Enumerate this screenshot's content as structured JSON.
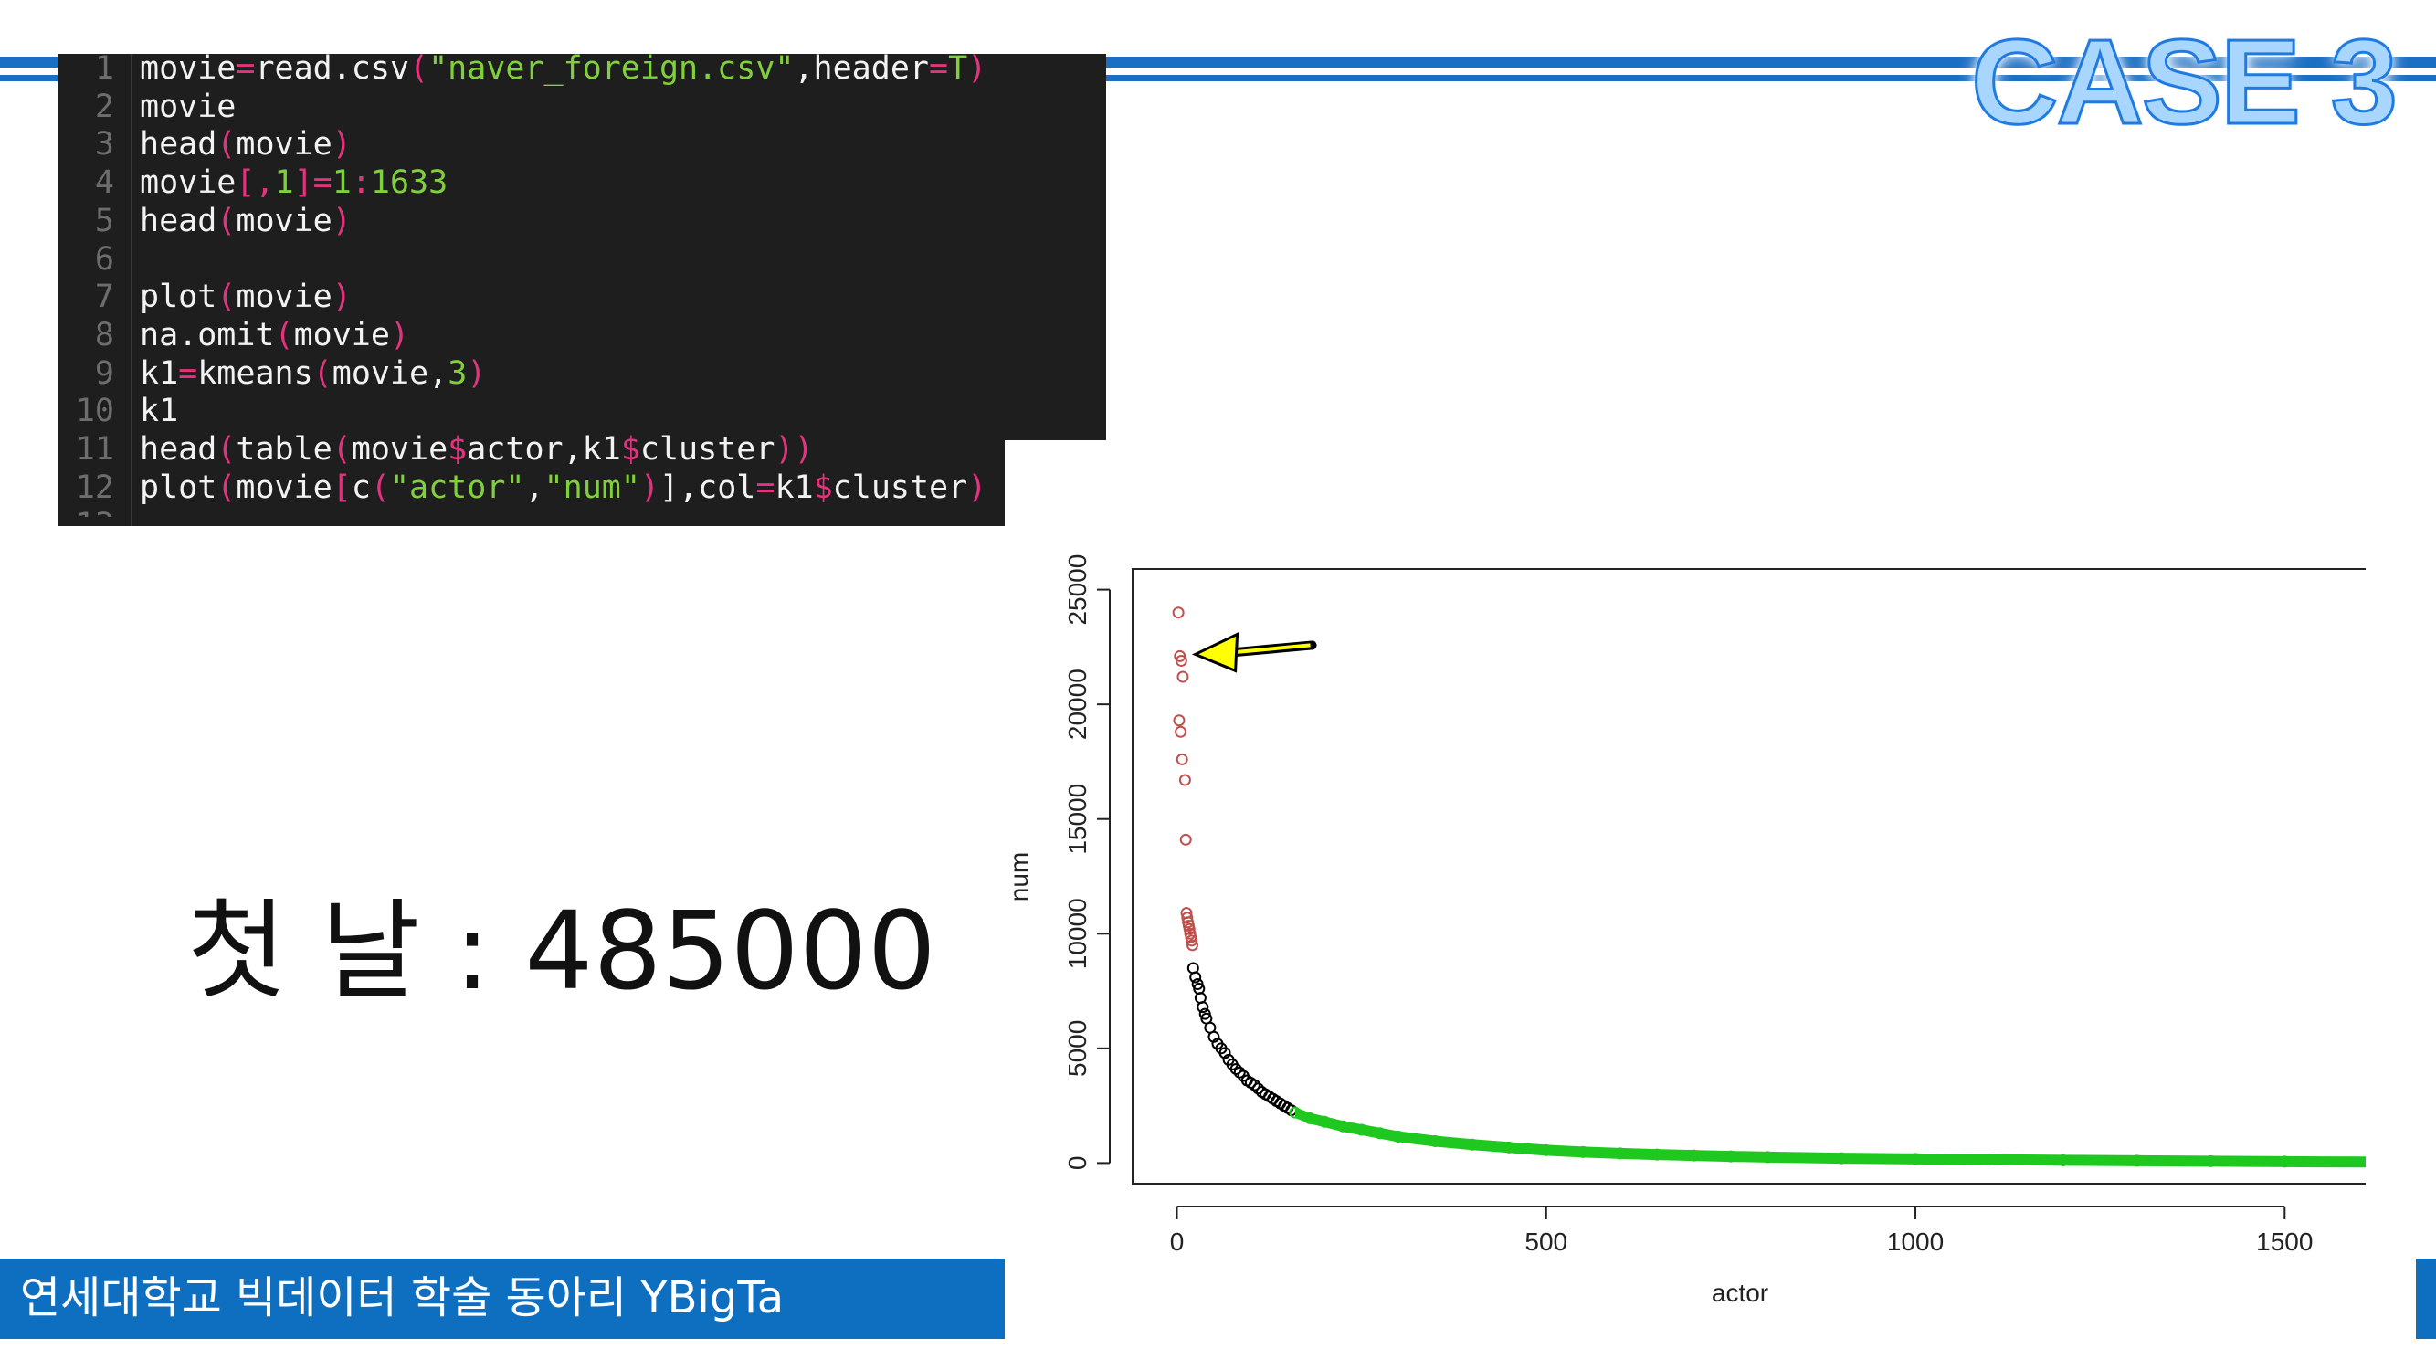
{
  "header": {
    "case_title": "CASE 3"
  },
  "code": {
    "lines": [
      {
        "n": "1",
        "segs": [
          [
            "tx",
            "movie"
          ],
          [
            "kw",
            "="
          ],
          [
            "tx",
            "read.csv"
          ],
          [
            "kw",
            "("
          ],
          [
            "st",
            "\"naver_foreign.csv\""
          ],
          [
            "tx",
            ",header"
          ],
          [
            "kw",
            "="
          ],
          [
            "st",
            "T"
          ],
          [
            "kw",
            ")"
          ]
        ]
      },
      {
        "n": "2",
        "segs": [
          [
            "tx",
            "movie"
          ]
        ]
      },
      {
        "n": "3",
        "segs": [
          [
            "tx",
            "head"
          ],
          [
            "kw",
            "("
          ],
          [
            "tx",
            "movie"
          ],
          [
            "kw",
            ")"
          ]
        ]
      },
      {
        "n": "4",
        "segs": [
          [
            "tx",
            "movie"
          ],
          [
            "kw",
            "[,"
          ],
          [
            "st",
            "1"
          ],
          [
            "kw",
            "]="
          ],
          [
            "st",
            "1"
          ],
          [
            "kw",
            ":"
          ],
          [
            "st",
            "1633"
          ]
        ]
      },
      {
        "n": "5",
        "segs": [
          [
            "tx",
            "head"
          ],
          [
            "kw",
            "("
          ],
          [
            "tx",
            "movie"
          ],
          [
            "kw",
            ")"
          ]
        ]
      },
      {
        "n": "6",
        "segs": []
      },
      {
        "n": "7",
        "segs": [
          [
            "tx",
            "plot"
          ],
          [
            "kw",
            "("
          ],
          [
            "tx",
            "movie"
          ],
          [
            "kw",
            ")"
          ]
        ]
      },
      {
        "n": "8",
        "segs": [
          [
            "tx",
            "na.omit"
          ],
          [
            "kw",
            "("
          ],
          [
            "tx",
            "movie"
          ],
          [
            "kw",
            ")"
          ]
        ]
      },
      {
        "n": "9",
        "segs": [
          [
            "tx",
            "k1"
          ],
          [
            "kw",
            "="
          ],
          [
            "tx",
            "kmeans"
          ],
          [
            "kw",
            "("
          ],
          [
            "tx",
            "movie,"
          ],
          [
            "st",
            "3"
          ],
          [
            "kw",
            ")"
          ]
        ]
      },
      {
        "n": "10",
        "segs": [
          [
            "tx",
            "k1"
          ]
        ]
      },
      {
        "n": "11",
        "segs": [
          [
            "tx",
            "head"
          ],
          [
            "kw",
            "("
          ],
          [
            "tx",
            "table"
          ],
          [
            "kw",
            "("
          ],
          [
            "tx",
            "movie"
          ],
          [
            "kw",
            "$"
          ],
          [
            "tx",
            "actor,k1"
          ],
          [
            "kw",
            "$"
          ],
          [
            "tx",
            "cluster"
          ],
          [
            "kw",
            "))"
          ]
        ]
      },
      {
        "n": "12",
        "segs": [
          [
            "tx",
            "plot"
          ],
          [
            "kw",
            "("
          ],
          [
            "tx",
            "movie"
          ],
          [
            "kw",
            "["
          ],
          [
            "tx",
            "c"
          ],
          [
            "kw",
            "("
          ],
          [
            "st",
            "\"actor\""
          ],
          [
            "tx",
            ","
          ],
          [
            "st",
            "\"num\""
          ],
          [
            "kw",
            ")"
          ],
          [
            "tx",
            "],col"
          ],
          [
            "kw",
            "="
          ],
          [
            "tx",
            "k1"
          ],
          [
            "kw",
            "$"
          ],
          [
            "tx",
            "cluster"
          ],
          [
            "kw",
            ")"
          ]
        ]
      },
      {
        "n": "13",
        "segs": []
      }
    ]
  },
  "main": {
    "big_text": "첫 날 : 485000"
  },
  "footer": {
    "text": "연세대학교 빅데이터 학술 동아리 YBigTa"
  },
  "colors": {
    "accent_blue": "#1a6fc4",
    "cluster_red": "#c0504d",
    "cluster_black": "#000000",
    "cluster_green": "#1fc81f",
    "arrow_fill": "#ffff00"
  },
  "chart_data": {
    "type": "scatter",
    "xlabel": "actor",
    "ylabel": "num",
    "xlim": [
      -60,
      1700
    ],
    "ylim": [
      -900,
      25900
    ],
    "x_ticks": [
      0,
      500,
      1000,
      1500
    ],
    "y_ticks": [
      0,
      5000,
      10000,
      15000,
      20000,
      25000
    ],
    "grid": false,
    "legend": "none",
    "series": [
      {
        "cluster": 1,
        "color": "#c0504d",
        "x": [
          2,
          4,
          6,
          8,
          3,
          5,
          7,
          11,
          12,
          13,
          14,
          15,
          16,
          17,
          18,
          19,
          20,
          21
        ],
        "y": [
          24000,
          22100,
          21900,
          21200,
          19300,
          18800,
          17600,
          16700,
          14100,
          10900,
          10700,
          10500,
          10350,
          10200,
          10000,
          9850,
          9700,
          9500
        ]
      },
      {
        "cluster": 2,
        "color": "#000000",
        "x": [
          22,
          25,
          28,
          30,
          32,
          35,
          38,
          40,
          45,
          50,
          55,
          60,
          65,
          70,
          75,
          80,
          85,
          90,
          95,
          100,
          105,
          110,
          115,
          120,
          125,
          130,
          135,
          140,
          145,
          150,
          155
        ],
        "y": [
          8500,
          8100,
          7800,
          7600,
          7200,
          6800,
          6500,
          6300,
          5900,
          5500,
          5200,
          5000,
          4800,
          4500,
          4300,
          4100,
          3950,
          3800,
          3600,
          3500,
          3400,
          3250,
          3100,
          3000,
          2900,
          2800,
          2700,
          2600,
          2500,
          2400,
          2300
        ]
      },
      {
        "cluster": 3,
        "color": "#1fc81f",
        "x": [
          160,
          180,
          200,
          225,
          250,
          275,
          300,
          350,
          400,
          450,
          500,
          550,
          600,
          650,
          700,
          750,
          800,
          900,
          1000,
          1100,
          1200,
          1300,
          1400,
          1500,
          1633
        ],
        "y": [
          2200,
          1950,
          1800,
          1600,
          1450,
          1300,
          1150,
          950,
          800,
          680,
          560,
          480,
          420,
          370,
          330,
          290,
          260,
          210,
          180,
          150,
          120,
          100,
          80,
          60,
          40
        ]
      }
    ],
    "annotation": {
      "shape": "arrow",
      "x": 10,
      "y": 22100
    }
  }
}
